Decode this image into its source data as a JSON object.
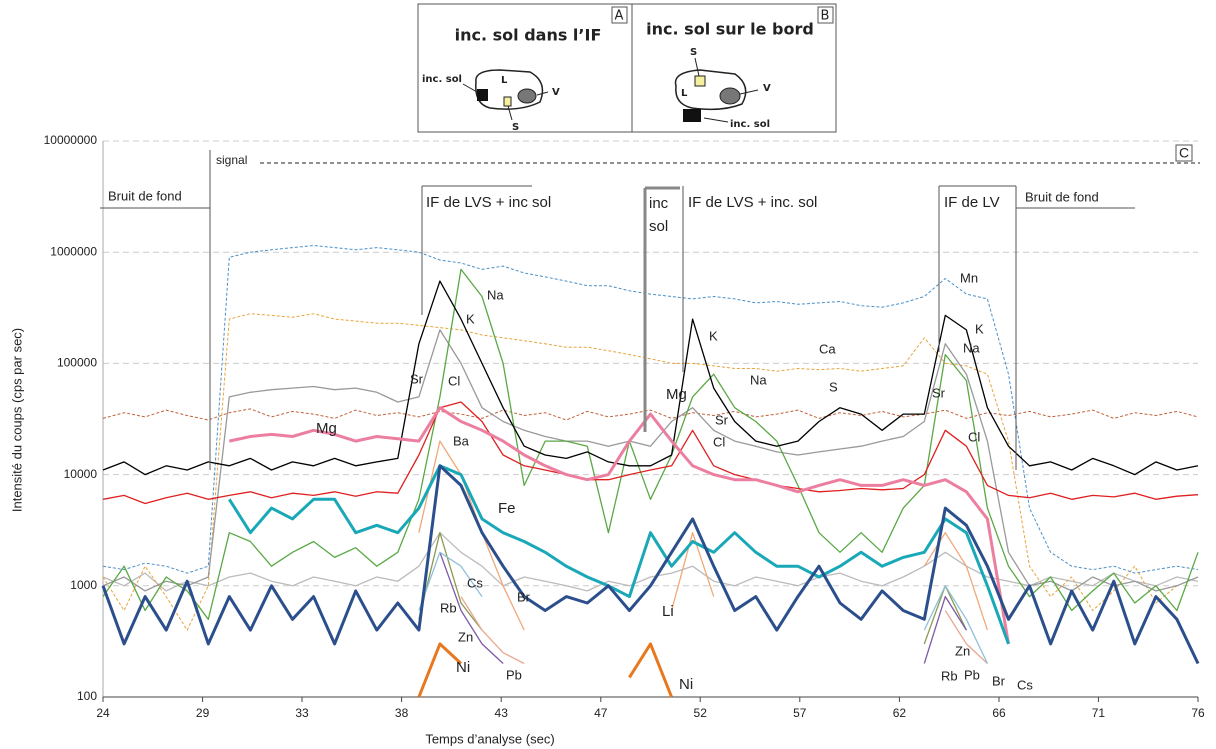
{
  "inset": {
    "panels": [
      {
        "letter": "A",
        "title": "inc. sol dans l’IF",
        "labels": [
          "inc. sol",
          "L",
          "V",
          "S"
        ]
      },
      {
        "letter": "B",
        "title": "inc. sol sur le bord",
        "labels": [
          "S",
          "L",
          "V",
          "inc. sol"
        ]
      }
    ]
  },
  "chart_data": {
    "type": "line",
    "x_label": "Temps d’analyse (sec)",
    "y_label": "Intensité du coups  (cps par sec)",
    "annotations": [
      "signal",
      "Bruit de fond",
      "IF de LVS + inc sol",
      "inc",
      "sol",
      "IF de LVS + inc. sol",
      "IF de LV",
      "Bruit de fond",
      "C"
    ],
    "log_y": true,
    "grid": true,
    "xlim": [
      24,
      76
    ],
    "ylim": [
      100,
      10000000
    ],
    "xticks": [
      {
        "value": 24,
        "label": "24"
      },
      {
        "value": 28.73,
        "label": "29"
      },
      {
        "value": 33.45,
        "label": "33"
      },
      {
        "value": 38.18,
        "label": "38"
      },
      {
        "value": 42.91,
        "label": "43"
      },
      {
        "value": 47.64,
        "label": "47"
      },
      {
        "value": 52.36,
        "label": "52"
      },
      {
        "value": 57.09,
        "label": "57"
      },
      {
        "value": 61.82,
        "label": "62"
      },
      {
        "value": 66.55,
        "label": "66"
      },
      {
        "value": 71.27,
        "label": "71"
      },
      {
        "value": 76,
        "label": "76"
      }
    ],
    "yticks": [
      100,
      1000,
      10000,
      100000,
      1000000,
      10000000
    ],
    "x": [
      24,
      25,
      26,
      27,
      28,
      29,
      30,
      31,
      32,
      33,
      34,
      35,
      36,
      37,
      38,
      39,
      40,
      41,
      42,
      43,
      44,
      45,
      46,
      47,
      48,
      49,
      50,
      51,
      52,
      53,
      54,
      55,
      56,
      57,
      58,
      59,
      60,
      61,
      62,
      63,
      64,
      65,
      66,
      67,
      68,
      69,
      70,
      71,
      72,
      73,
      74,
      75,
      76
    ],
    "series": [
      {
        "name": "Mn",
        "color": "#4a90c8",
        "style": "dashed",
        "values": [
          1500,
          1400,
          1600,
          1500,
          1300,
          1500,
          900000,
          1000000,
          1050000,
          1100000,
          1150000,
          1100000,
          1050000,
          1100000,
          1050000,
          1000000,
          850000,
          800000,
          700000,
          750000,
          650000,
          600000,
          550000,
          500000,
          500000,
          450000,
          420000,
          400000,
          380000,
          400000,
          380000,
          350000,
          360000,
          340000,
          350000,
          360000,
          330000,
          320000,
          350000,
          400000,
          580000,
          420000,
          380000,
          80000,
          5000,
          2000,
          1500,
          1400,
          1500,
          1300,
          1400,
          1500,
          1400
        ]
      },
      {
        "name": "Ca",
        "color": "#e8a33a",
        "style": "dashed",
        "values": [
          1200,
          600,
          1500,
          800,
          400,
          1000,
          250000,
          280000,
          270000,
          260000,
          280000,
          250000,
          240000,
          230000,
          230000,
          220000,
          210000,
          200000,
          180000,
          170000,
          160000,
          150000,
          140000,
          140000,
          130000,
          120000,
          110000,
          100000,
          100000,
          95000,
          90000,
          90000,
          85000,
          90000,
          88000,
          90000,
          85000,
          90000,
          95000,
          170000,
          100000,
          95000,
          80000,
          20000,
          1500,
          800,
          1200,
          600,
          900,
          1500,
          700,
          1000,
          1200
        ]
      },
      {
        "name": "S",
        "color": "#c0603a",
        "style": "dashed",
        "values": [
          32000,
          36000,
          33000,
          38000,
          34000,
          31000,
          36000,
          39000,
          33000,
          37000,
          35000,
          32000,
          38000,
          34000,
          36000,
          33000,
          37000,
          35000,
          32000,
          38000,
          34000,
          36000,
          31000,
          37000,
          33000,
          35000,
          38000,
          32000,
          36000,
          34000,
          37000,
          33000,
          35000,
          38000,
          32000,
          36000,
          34000,
          37000,
          33000,
          35000,
          38000,
          32000,
          36000,
          34000,
          37000,
          33000,
          35000,
          38000,
          32000,
          36000,
          34000,
          37000,
          33000
        ]
      },
      {
        "name": "K",
        "color": "#000000",
        "style": "solid",
        "values": [
          11000,
          13000,
          10000,
          12000,
          11000,
          13000,
          12000,
          14000,
          11000,
          13000,
          12000,
          14000,
          12000,
          13000,
          14000,
          150000,
          550000,
          250000,
          100000,
          40000,
          18000,
          15000,
          14000,
          16000,
          13000,
          12000,
          12000,
          15000,
          250000,
          60000,
          30000,
          20000,
          18000,
          20000,
          30000,
          40000,
          35000,
          25000,
          35000,
          35000,
          270000,
          200000,
          40000,
          18000,
          12000,
          13000,
          11000,
          14000,
          12000,
          10000,
          13000,
          11000,
          12000
        ]
      },
      {
        "name": "Na",
        "color": "#5aa845",
        "style": "solid",
        "values": [
          800,
          1500,
          600,
          1200,
          900,
          500,
          3000,
          2500,
          1500,
          2000,
          2500,
          1800,
          2200,
          1500,
          2000,
          6000,
          50000,
          700000,
          400000,
          100000,
          8000,
          20000,
          20000,
          18000,
          3000,
          20000,
          6000,
          15000,
          50000,
          80000,
          40000,
          30000,
          20000,
          8000,
          3000,
          2000,
          3000,
          2000,
          5000,
          8000,
          120000,
          70000,
          5000,
          1500,
          800,
          1200,
          600,
          900,
          1300,
          700,
          1000,
          600,
          2000
        ]
      },
      {
        "name": "Sr",
        "color": "#999999",
        "style": "solid",
        "values": [
          1000,
          1200,
          900,
          1100,
          1000,
          1200,
          50000,
          55000,
          58000,
          60000,
          62000,
          58000,
          60000,
          55000,
          45000,
          50000,
          200000,
          100000,
          40000,
          30000,
          25000,
          22000,
          20000,
          20000,
          18000,
          20000,
          18000,
          30000,
          40000,
          25000,
          20000,
          18000,
          16000,
          15000,
          16000,
          17000,
          18000,
          20000,
          22000,
          30000,
          150000,
          80000,
          20000,
          2000,
          1000,
          1100,
          900,
          1200,
          1000,
          1100,
          900,
          1000,
          1200
        ]
      },
      {
        "name": "Mg",
        "color": "#ec7fa0",
        "style": "bold",
        "values": [
          null,
          null,
          null,
          null,
          null,
          null,
          20000,
          22000,
          23000,
          22000,
          25000,
          23000,
          20000,
          22000,
          21000,
          20000,
          40000,
          30000,
          25000,
          20000,
          15000,
          12000,
          10000,
          9000,
          10000,
          20000,
          35000,
          20000,
          12000,
          10000,
          9000,
          9000,
          8000,
          7000,
          8000,
          9000,
          8000,
          8000,
          9000,
          8000,
          9000,
          7000,
          4000,
          300,
          null,
          null,
          null,
          null,
          null,
          null,
          null,
          null,
          null
        ]
      },
      {
        "name": "Cl",
        "color": "#e02020",
        "style": "solid",
        "values": [
          6000,
          6500,
          5500,
          6200,
          6800,
          6000,
          6500,
          7000,
          6200,
          6800,
          6500,
          7000,
          6400,
          7000,
          6800,
          15000,
          40000,
          45000,
          30000,
          15000,
          12000,
          11000,
          10000,
          9000,
          9000,
          10000,
          11000,
          12000,
          25000,
          12000,
          10000,
          9000,
          8000,
          7500,
          7000,
          7200,
          7500,
          7300,
          7500,
          10000,
          25000,
          18000,
          8000,
          6500,
          6200,
          6800,
          6000,
          6500,
          6300,
          6800,
          6000,
          6400,
          6600
        ]
      },
      {
        "name": "Ba",
        "color": "#f0a878",
        "style": "solid",
        "values": [
          null,
          null,
          null,
          null,
          null,
          null,
          null,
          null,
          null,
          null,
          null,
          null,
          null,
          null,
          null,
          3000,
          20000,
          10000,
          3000,
          1000,
          400,
          null,
          null,
          null,
          null,
          null,
          null,
          600,
          3000,
          800,
          null,
          null,
          null,
          null,
          null,
          null,
          null,
          null,
          null,
          1500,
          3000,
          1500,
          400,
          null,
          null,
          null,
          null,
          null,
          null,
          null,
          null,
          null,
          null
        ]
      },
      {
        "name": "Fe",
        "color": "#19a8b8",
        "style": "bold",
        "values": [
          null,
          null,
          null,
          null,
          null,
          null,
          6000,
          3000,
          5000,
          4000,
          6000,
          6000,
          3000,
          3500,
          3000,
          5000,
          12000,
          10000,
          4000,
          3000,
          2500,
          2000,
          1500,
          1200,
          1000,
          800,
          3000,
          1500,
          2500,
          2000,
          3000,
          2000,
          1500,
          1500,
          1200,
          1500,
          2000,
          1500,
          1800,
          2000,
          4000,
          3000,
          1000,
          300,
          null,
          null,
          null,
          null,
          null,
          null,
          null,
          null,
          null
        ]
      },
      {
        "name": "Li",
        "color": "#2b4f8c",
        "style": "bold",
        "values": [
          1000,
          300,
          800,
          400,
          1100,
          300,
          800,
          400,
          1000,
          500,
          800,
          300,
          900,
          400,
          700,
          400,
          12000,
          8000,
          3000,
          1500,
          800,
          600,
          800,
          700,
          1000,
          600,
          1000,
          2000,
          4000,
          1500,
          600,
          800,
          400,
          800,
          1500,
          700,
          500,
          900,
          600,
          500,
          5000,
          3500,
          1500,
          500,
          1000,
          300,
          900,
          400,
          1100,
          300,
          800,
          500,
          200
        ]
      },
      {
        "name": "Cs",
        "color": "#8fc0d8",
        "style": "solid",
        "values": [
          null,
          null,
          null,
          null,
          null,
          null,
          null,
          null,
          null,
          null,
          null,
          null,
          null,
          null,
          null,
          600,
          2000,
          1500,
          800,
          null,
          null,
          null,
          null,
          null,
          null,
          null,
          null,
          null,
          null,
          null,
          null,
          null,
          null,
          null,
          null,
          null,
          null,
          null,
          null,
          400,
          1000,
          500,
          200,
          null,
          null,
          null,
          null,
          null,
          null,
          null,
          null,
          null,
          null
        ]
      },
      {
        "name": "Br",
        "color": "#bbbbbb",
        "style": "solid",
        "values": [
          1200,
          1000,
          1300,
          900,
          1100,
          1000,
          1200,
          1300,
          1100,
          1000,
          1200,
          1100,
          1000,
          1200,
          1100,
          1500,
          3000,
          2000,
          1500,
          1000,
          1200,
          1100,
          1000,
          900,
          1100,
          1000,
          1200,
          1300,
          1500,
          1100,
          1000,
          1200,
          1100,
          1000,
          1200,
          1300,
          1100,
          1000,
          1200,
          1500,
          2000,
          1500,
          1200,
          1100,
          1000,
          1200,
          1100,
          1000,
          1300,
          1100,
          1000,
          1200,
          1100
        ]
      },
      {
        "name": "Rb",
        "color": "#8a9a50",
        "style": "solid",
        "values": [
          null,
          null,
          null,
          null,
          null,
          null,
          null,
          null,
          null,
          null,
          null,
          null,
          null,
          null,
          null,
          500,
          3000,
          700,
          400,
          null,
          null,
          null,
          null,
          null,
          null,
          null,
          null,
          null,
          null,
          null,
          null,
          null,
          null,
          null,
          null,
          null,
          null,
          null,
          null,
          300,
          1000,
          400,
          null,
          null,
          null,
          null,
          null,
          null,
          null,
          null,
          null,
          null,
          null
        ]
      },
      {
        "name": "Zn",
        "color": "#7d5aa8",
        "style": "solid",
        "values": [
          null,
          null,
          null,
          null,
          null,
          null,
          null,
          null,
          null,
          null,
          null,
          null,
          null,
          null,
          null,
          null,
          2000,
          600,
          300,
          200,
          null,
          null,
          null,
          null,
          null,
          null,
          null,
          null,
          null,
          null,
          null,
          null,
          null,
          null,
          null,
          null,
          null,
          null,
          null,
          200,
          800,
          400,
          null,
          null,
          null,
          null,
          null,
          null,
          null,
          null,
          null,
          null,
          null
        ]
      },
      {
        "name": "Pb",
        "color": "#e8a890",
        "style": "solid",
        "values": [
          null,
          null,
          null,
          null,
          null,
          null,
          null,
          null,
          null,
          null,
          null,
          null,
          null,
          null,
          null,
          null,
          null,
          800,
          400,
          250,
          200,
          null,
          null,
          null,
          null,
          null,
          null,
          null,
          null,
          null,
          null,
          null,
          null,
          null,
          null,
          null,
          null,
          null,
          null,
          null,
          600,
          300,
          200,
          null,
          null,
          null,
          null,
          null,
          null,
          null,
          null,
          null,
          null
        ]
      },
      {
        "name": "Ni",
        "color": "#e87820",
        "style": "bold",
        "values": [
          null,
          null,
          null,
          null,
          null,
          null,
          null,
          null,
          null,
          null,
          null,
          null,
          null,
          null,
          null,
          100,
          300,
          200,
          null,
          null,
          null,
          null,
          null,
          null,
          null,
          150,
          300,
          100,
          null,
          null,
          null,
          null,
          null,
          null,
          null,
          null,
          null,
          null,
          null,
          null,
          null,
          null,
          null,
          null,
          null,
          null,
          null,
          null,
          null,
          null,
          null,
          null,
          null
        ]
      }
    ]
  }
}
